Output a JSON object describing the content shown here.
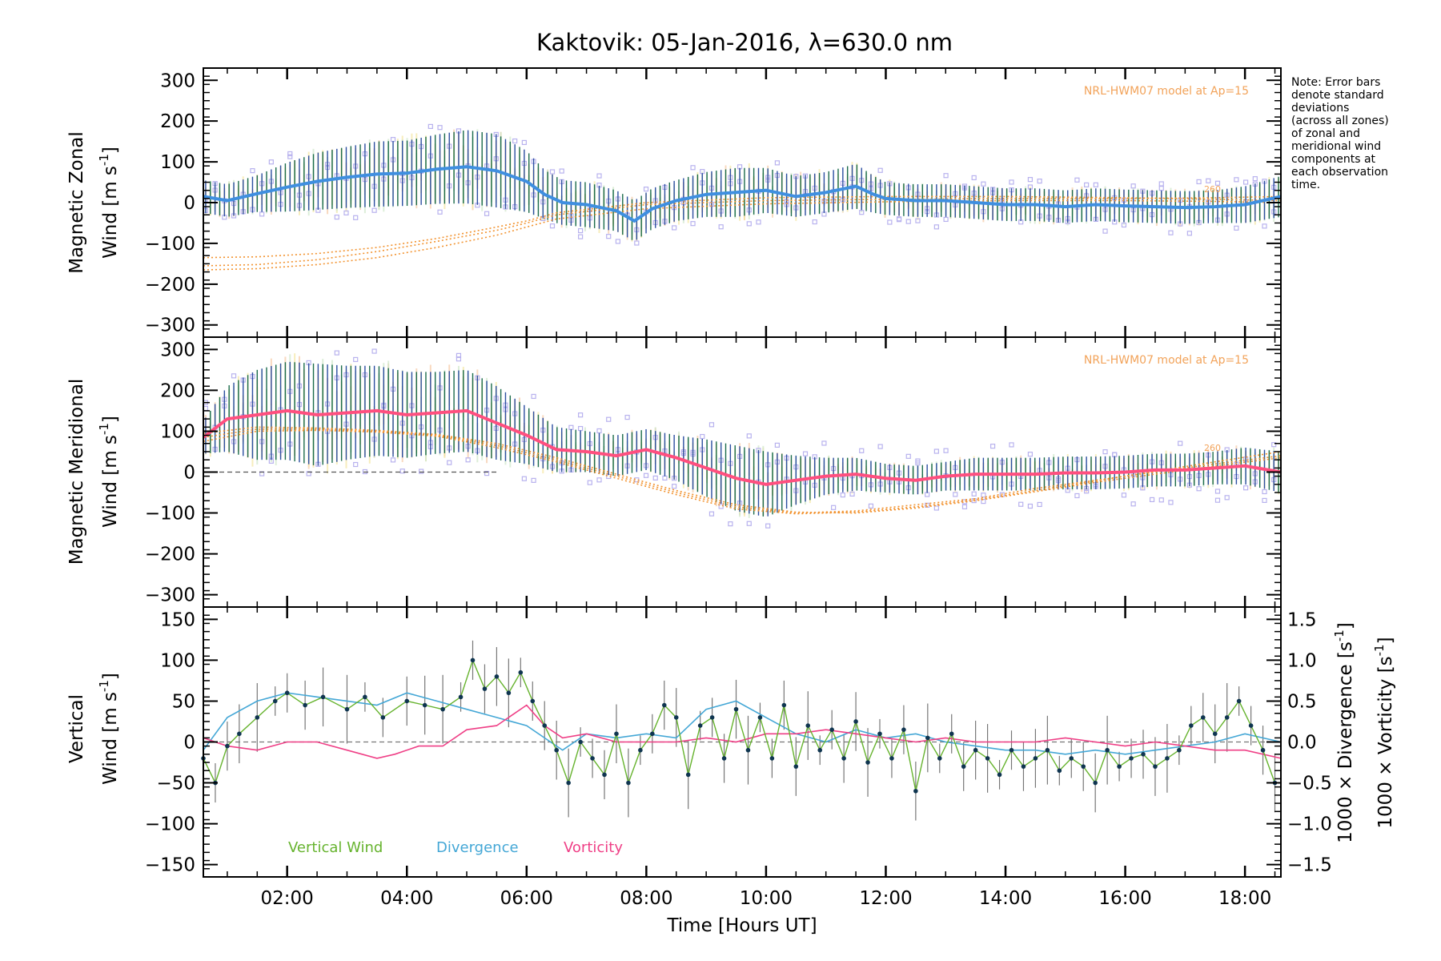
{
  "title": "Kaktovik: 05-Jan-2016, λ=630.0 nm",
  "note_lines": [
    "Note: Error bars",
    "denote standard",
    "deviations",
    "(across all zones)",
    "of zonal and",
    "meridional wind",
    "components at",
    "each observation",
    "time."
  ],
  "model_note": "NRL-HWM07 model at Ap=15",
  "model_tag": "260",
  "xaxis": {
    "label": "Time [Hours UT]",
    "ticks": [
      "02:00",
      "04:00",
      "06:00",
      "08:00",
      "10:00",
      "12:00",
      "14:00",
      "16:00",
      "18:00"
    ],
    "tick_values": [
      2,
      4,
      6,
      8,
      10,
      12,
      14,
      16,
      18
    ],
    "range": [
      0.6,
      18.6
    ]
  },
  "colors": {
    "zonal": "#3f8fe0",
    "zonal_dark": "#1f4fc0",
    "meridional": "#ff4f7f",
    "vertical": "#66b32e",
    "divergence": "#44a7d6",
    "vorticity": "#ef3f86",
    "model": "#f29330",
    "scatter": "#b8b2ee",
    "errbar_a": "#1a6b4a",
    "errbar_b": "#2b4ea0",
    "ghost": "#f6c9a5"
  },
  "chart_data": [
    {
      "type": "line",
      "panel": "zonal",
      "ylabel_line1": "Magnetic Zonal",
      "ylabel_line2": "Wind [m s",
      "ylabel_sup": "-1",
      "ylabel_close": "]",
      "ylim": [
        -330,
        330
      ],
      "yticks": [
        -300,
        -200,
        -100,
        0,
        100,
        200,
        300
      ],
      "yticklabels": [
        "−300",
        "−200",
        "−100",
        "0",
        "100",
        "200",
        "300"
      ],
      "series": [
        {
          "x": [
            0.6,
            1.0,
            1.5,
            2.0,
            2.5,
            3.0,
            3.5,
            4.0,
            4.5,
            5.0,
            5.5,
            6.0,
            6.3,
            6.6,
            7.0,
            7.5,
            7.8,
            8.1,
            8.5,
            9.0,
            9.5,
            10.0,
            10.5,
            11.0,
            11.5,
            11.8,
            12.0,
            12.5,
            13.0,
            13.5,
            14.0,
            14.5,
            15.0,
            15.5,
            16.0,
            16.5,
            17.0,
            17.5,
            18.0,
            18.6
          ],
          "values": [
            15,
            5,
            22,
            38,
            52,
            62,
            70,
            72,
            82,
            88,
            78,
            52,
            20,
            0,
            -5,
            -20,
            -45,
            -15,
            5,
            20,
            25,
            30,
            15,
            25,
            40,
            20,
            10,
            5,
            5,
            0,
            -5,
            -5,
            -10,
            -5,
            -8,
            -10,
            -12,
            -10,
            -5,
            15
          ],
          "err": [
            40,
            40,
            45,
            60,
            70,
            75,
            80,
            80,
            85,
            90,
            90,
            75,
            60,
            55,
            55,
            50,
            50,
            50,
            50,
            55,
            60,
            55,
            50,
            50,
            55,
            45,
            40,
            40,
            40,
            40,
            40,
            40,
            40,
            40,
            40,
            40,
            40,
            40,
            45,
            50
          ]
        }
      ],
      "model_curves": [
        {
          "x": [
            0.6,
            1.5,
            2.5,
            3.5,
            4.5,
            5.5,
            6.0,
            6.5,
            8.0,
            10.0,
            12.0,
            14.0,
            16.0,
            17.5,
            18.6
          ],
          "values": [
            -155,
            -152,
            -140,
            -120,
            -95,
            -68,
            -50,
            -30,
            -5,
            5,
            8,
            10,
            10,
            12,
            15
          ]
        },
        {
          "x": [
            0.6,
            1.5,
            2.5,
            3.5,
            4.5,
            5.5,
            6.0,
            6.5,
            8.0,
            10.0,
            12.0,
            14.0,
            16.0,
            17.5,
            18.6
          ],
          "values": [
            -165,
            -162,
            -152,
            -135,
            -110,
            -80,
            -60,
            -40,
            -15,
            -3,
            2,
            5,
            5,
            3,
            0
          ]
        },
        {
          "x": [
            0.6,
            1.5,
            2.5,
            3.5,
            4.5,
            5.5,
            6.0,
            6.5,
            8.0,
            10.0,
            12.0,
            14.0,
            16.0,
            17.5,
            18.6
          ],
          "values": [
            -135,
            -133,
            -125,
            -110,
            -88,
            -60,
            -45,
            -25,
            0,
            12,
            15,
            15,
            12,
            8,
            5
          ]
        }
      ]
    },
    {
      "type": "line",
      "panel": "meridional",
      "ylabel_line1": "Magnetic Meridional",
      "ylabel_line2": "Wind [m s",
      "ylabel_sup": "-1",
      "ylabel_close": "]",
      "ylim": [
        -330,
        330
      ],
      "yticks": [
        -300,
        -200,
        -100,
        0,
        100,
        200,
        300
      ],
      "yticklabels": [
        "−300",
        "−200",
        "−100",
        "0",
        "100",
        "200",
        "300"
      ],
      "zero_line_x": [
        0.6,
        5.5
      ],
      "series": [
        {
          "x": [
            0.6,
            1.0,
            1.5,
            2.0,
            2.5,
            3.0,
            3.5,
            4.0,
            4.5,
            5.0,
            5.5,
            6.0,
            6.5,
            7.0,
            7.5,
            8.0,
            8.5,
            9.0,
            9.5,
            10.0,
            10.5,
            11.0,
            11.5,
            12.0,
            12.5,
            13.0,
            13.5,
            14.0,
            14.5,
            15.0,
            15.5,
            16.0,
            16.5,
            17.0,
            17.5,
            18.0,
            18.6
          ],
          "values": [
            85,
            130,
            140,
            150,
            140,
            145,
            150,
            140,
            145,
            150,
            120,
            90,
            55,
            50,
            40,
            55,
            35,
            10,
            -15,
            -30,
            -20,
            -10,
            -5,
            -15,
            -20,
            -10,
            -5,
            -5,
            -5,
            -2,
            -2,
            0,
            5,
            5,
            10,
            15,
            0
          ],
          "err": [
            40,
            80,
            110,
            120,
            125,
            115,
            110,
            105,
            100,
            100,
            90,
            70,
            55,
            50,
            50,
            50,
            55,
            70,
            80,
            80,
            60,
            45,
            40,
            35,
            35,
            35,
            40,
            40,
            40,
            40,
            40,
            40,
            40,
            40,
            40,
            45,
            50
          ]
        }
      ],
      "model_curves": [
        {
          "x": [
            0.6,
            1.5,
            2.5,
            3.5,
            4.5,
            5.5,
            6.5,
            7.5,
            8.5,
            9.5,
            10.5,
            11.5,
            12.5,
            13.5,
            14.5,
            15.5,
            16.5,
            17.5,
            18.6
          ],
          "values": [
            85,
            105,
            105,
            100,
            90,
            65,
            30,
            -10,
            -50,
            -85,
            -100,
            -95,
            -80,
            -65,
            -40,
            -20,
            0,
            20,
            40
          ]
        },
        {
          "x": [
            0.6,
            1.5,
            2.5,
            3.5,
            4.5,
            5.5,
            6.5,
            7.5,
            8.5,
            9.5,
            10.5,
            11.5,
            12.5,
            13.5,
            14.5,
            15.5,
            16.5,
            17.5,
            18.6
          ],
          "values": [
            95,
            110,
            108,
            102,
            92,
            70,
            35,
            -5,
            -45,
            -80,
            -98,
            -100,
            -88,
            -70,
            -48,
            -25,
            -5,
            15,
            35
          ]
        },
        {
          "x": [
            0.6,
            1.5,
            2.5,
            3.5,
            4.5,
            5.5,
            6.5,
            7.5,
            8.5,
            9.5,
            10.5,
            11.5,
            12.5,
            13.5,
            14.5,
            15.5,
            16.5,
            17.5,
            18.6
          ],
          "values": [
            75,
            100,
            102,
            98,
            88,
            60,
            25,
            -15,
            -55,
            -90,
            -102,
            -98,
            -85,
            -68,
            -45,
            -22,
            2,
            25,
            50
          ]
        }
      ]
    },
    {
      "type": "line",
      "panel": "vertical",
      "ylabel_left_a": "Vertical",
      "ylabel_left_b": "Wind",
      "ylabel_left_units": "[m s",
      "ylabel_left_sup": "-1",
      "ylabel_left_close": "]",
      "ylim": [
        -165,
        165
      ],
      "yticks": [
        -150,
        -100,
        -50,
        0,
        50,
        100,
        150
      ],
      "yticklabels": [
        "−150",
        "−100",
        "−50",
        "0",
        "50",
        "100",
        "150"
      ],
      "y2lim": [
        -1.65,
        1.65
      ],
      "y2ticks": [
        -1.5,
        -1.0,
        -0.5,
        0.0,
        0.5,
        1.0,
        1.5
      ],
      "y2ticklabels": [
        "−1.5",
        "−1.0",
        "−0.5",
        "0.0",
        "0.5",
        "1.0",
        "1.5"
      ],
      "ylabel_right_div": "1000 × Divergence [s",
      "ylabel_right_vor": "1000 × Vorticity [s",
      "ylabel_right_sup": "-1",
      "ylabel_right_close": "]",
      "legend": [
        "Vertical Wind",
        "Divergence",
        "Vorticity"
      ],
      "series": [
        {
          "name": "Vertical Wind",
          "axis": "left",
          "x": [
            0.6,
            0.8,
            1.0,
            1.2,
            1.5,
            1.8,
            2.0,
            2.3,
            2.6,
            3.0,
            3.3,
            3.6,
            4.0,
            4.3,
            4.6,
            4.9,
            5.1,
            5.3,
            5.5,
            5.7,
            5.9,
            6.1,
            6.3,
            6.5,
            6.7,
            6.9,
            7.1,
            7.3,
            7.5,
            7.7,
            7.9,
            8.1,
            8.3,
            8.5,
            8.7,
            8.9,
            9.1,
            9.3,
            9.5,
            9.7,
            9.9,
            10.1,
            10.3,
            10.5,
            10.7,
            10.9,
            11.1,
            11.3,
            11.5,
            11.7,
            11.9,
            12.1,
            12.3,
            12.5,
            12.7,
            12.9,
            13.1,
            13.3,
            13.5,
            13.7,
            13.9,
            14.1,
            14.3,
            14.5,
            14.7,
            14.9,
            15.1,
            15.3,
            15.5,
            15.7,
            15.9,
            16.1,
            16.3,
            16.5,
            16.7,
            16.9,
            17.1,
            17.3,
            17.5,
            17.7,
            17.9,
            18.1,
            18.3,
            18.5
          ],
          "values": [
            -20,
            -50,
            -5,
            10,
            30,
            50,
            60,
            45,
            55,
            40,
            55,
            30,
            50,
            45,
            40,
            55,
            100,
            65,
            80,
            60,
            85,
            50,
            20,
            -10,
            -50,
            0,
            -20,
            -40,
            10,
            -50,
            -10,
            10,
            45,
            30,
            -40,
            20,
            30,
            -20,
            40,
            -10,
            30,
            -20,
            45,
            -30,
            20,
            -10,
            15,
            -20,
            25,
            -25,
            10,
            -20,
            15,
            -60,
            5,
            -20,
            10,
            -30,
            -10,
            -20,
            -40,
            -10,
            -30,
            -20,
            -10,
            -35,
            -20,
            -30,
            -50,
            -10,
            -30,
            -20,
            -15,
            -30,
            -20,
            -10,
            20,
            30,
            10,
            30,
            50,
            20,
            -10,
            -50
          ]
        },
        {
          "name": "Divergence",
          "axis": "right",
          "x": [
            0.6,
            1.0,
            1.5,
            2.0,
            2.5,
            3.0,
            3.5,
            4.0,
            4.5,
            5.0,
            5.5,
            6.0,
            6.3,
            6.6,
            7.0,
            7.5,
            8.0,
            8.5,
            9.0,
            9.5,
            10.0,
            10.5,
            11.0,
            11.5,
            12.0,
            12.5,
            13.0,
            13.5,
            14.0,
            14.5,
            15.0,
            15.5,
            16.0,
            16.5,
            17.0,
            17.5,
            18.0,
            18.6
          ],
          "values": [
            -0.1,
            0.3,
            0.5,
            0.6,
            0.55,
            0.5,
            0.45,
            0.6,
            0.5,
            0.4,
            0.3,
            0.2,
            0.05,
            -0.1,
            0.1,
            0.05,
            0.1,
            0.05,
            0.4,
            0.5,
            0.3,
            0.1,
            0.0,
            0.15,
            0.05,
            0.1,
            0.0,
            -0.05,
            -0.1,
            -0.1,
            -0.15,
            -0.1,
            -0.15,
            -0.1,
            -0.05,
            0.0,
            0.1,
            0.0
          ]
        },
        {
          "name": "Vorticity",
          "axis": "right",
          "x": [
            0.6,
            1.0,
            1.5,
            2.0,
            2.5,
            3.0,
            3.5,
            3.8,
            4.2,
            4.6,
            5.0,
            5.5,
            6.0,
            6.3,
            6.6,
            7.0,
            7.5,
            8.0,
            8.5,
            9.0,
            9.5,
            10.0,
            10.5,
            11.0,
            11.5,
            12.0,
            12.5,
            13.0,
            13.5,
            14.0,
            14.5,
            15.0,
            15.5,
            16.0,
            16.5,
            17.0,
            17.5,
            18.0,
            18.6
          ],
          "values": [
            0.05,
            -0.05,
            -0.1,
            0.0,
            0.0,
            -0.1,
            -0.2,
            -0.15,
            -0.05,
            -0.05,
            0.15,
            0.2,
            0.45,
            0.2,
            0.05,
            0.1,
            0.0,
            0.0,
            0.0,
            0.05,
            0.0,
            0.1,
            0.1,
            0.15,
            0.1,
            0.05,
            0.0,
            0.05,
            0.0,
            0.0,
            0.0,
            0.05,
            0.0,
            -0.05,
            0.0,
            -0.05,
            -0.1,
            -0.1,
            -0.2
          ]
        }
      ]
    }
  ]
}
